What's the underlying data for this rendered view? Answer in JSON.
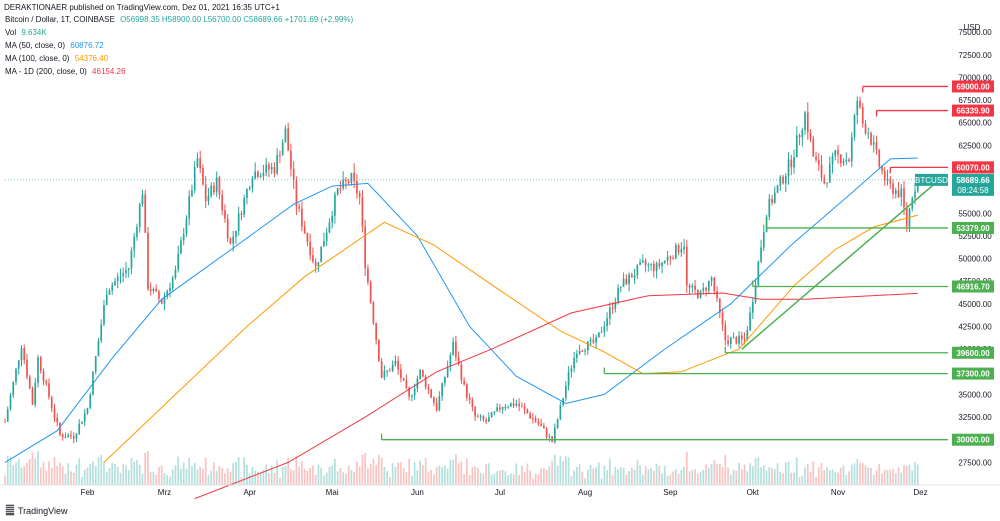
{
  "published_line": "DERAKTIONAER published on TradingView.com, Dez 01, 2021 16:35 UTC+1",
  "legend": {
    "symbol": "Bitcoin / Dollar, 1T, COINBASE",
    "ohlc": "O56998.35  H58900.00  L56700.00  C58689.66  +1701.69 (+2.99%)",
    "vol_label": "Vol",
    "vol_value": "9.634K",
    "ma50_label": "MA (50, close, 0)",
    "ma50_value": "60876.72",
    "ma100_label": "MA (100, close, 0)",
    "ma100_value": "54376.40",
    "ma200_label": "MA - 1D (200, close, 0)",
    "ma200_value": "46154.26"
  },
  "footer_brand": "TradingView",
  "currency": "USD",
  "ticker_tag": "BTCUSD",
  "last_price_tag": "58689.66",
  "countdown_tag": "08:24:58",
  "colors": {
    "up": "#26a69a",
    "down": "#ef5350",
    "ma50": "#2196f3",
    "ma100": "#ff9800",
    "ma200": "#f23645",
    "support": "#4caf50",
    "resistance": "#f23645"
  },
  "chart_data": {
    "type": "candlestick",
    "x_axis_labels": [
      "Feb",
      "Mrz",
      "Apr",
      "Mai",
      "Jun",
      "Jul",
      "Aug",
      "Sep",
      "Okt",
      "Nov",
      "Dez"
    ],
    "y_axis_labels": [
      "27500.00",
      "30000.00",
      "32500.00",
      "35000.00",
      "37500.00",
      "40000.00",
      "42500.00",
      "45000.00",
      "47500.00",
      "50000.00",
      "52500.00",
      "55000.00",
      "57500.00",
      "60000.00",
      "62500.00",
      "65000.00",
      "67500.00",
      "70000.00",
      "72500.00",
      "75000.00"
    ],
    "ylim": [
      25000,
      77000
    ],
    "close_path": [
      [
        "2021-01-02",
        32000
      ],
      [
        "2021-01-08",
        40500
      ],
      [
        "2021-01-12",
        34000
      ],
      [
        "2021-01-14",
        39000
      ],
      [
        "2021-01-22",
        30500
      ],
      [
        "2021-01-27",
        30400
      ],
      [
        "2021-02-01",
        33500
      ],
      [
        "2021-02-08",
        46500
      ],
      [
        "2021-02-12",
        47800
      ],
      [
        "2021-02-16",
        49000
      ],
      [
        "2021-02-21",
        57500
      ],
      [
        "2021-02-23",
        47000
      ],
      [
        "2021-02-28",
        45200
      ],
      [
        "2021-03-05",
        48500
      ],
      [
        "2021-03-13",
        61000
      ],
      [
        "2021-03-16",
        56500
      ],
      [
        "2021-03-20",
        58500
      ],
      [
        "2021-03-25",
        51500
      ],
      [
        "2021-04-02",
        59500
      ],
      [
        "2021-04-10",
        60000
      ],
      [
        "2021-04-14",
        64000
      ],
      [
        "2021-04-18",
        56000
      ],
      [
        "2021-04-25",
        49000
      ],
      [
        "2021-05-03",
        57500
      ],
      [
        "2021-05-08",
        58800
      ],
      [
        "2021-05-11",
        56700
      ],
      [
        "2021-05-13",
        49500
      ],
      [
        "2021-05-19",
        37000
      ],
      [
        "2021-05-21",
        37500
      ],
      [
        "2021-05-24",
        38500
      ],
      [
        "2021-05-29",
        34500
      ],
      [
        "2021-06-02",
        37500
      ],
      [
        "2021-06-08",
        33500
      ],
      [
        "2021-06-14",
        40500
      ],
      [
        "2021-06-18",
        35800
      ],
      [
        "2021-06-22",
        32500
      ],
      [
        "2021-06-26",
        32000
      ],
      [
        "2021-07-02",
        33800
      ],
      [
        "2021-07-07",
        34000
      ],
      [
        "2021-07-15",
        31800
      ],
      [
        "2021-07-20",
        29800
      ],
      [
        "2021-07-26",
        37200
      ],
      [
        "2021-07-29",
        40000
      ],
      [
        "2021-08-05",
        40800
      ],
      [
        "2021-08-14",
        47000
      ],
      [
        "2021-08-22",
        49300
      ],
      [
        "2021-08-27",
        49000
      ],
      [
        "2021-09-06",
        51700
      ],
      [
        "2021-09-07",
        46800
      ],
      [
        "2021-09-12",
        46000
      ],
      [
        "2021-09-16",
        47800
      ],
      [
        "2021-09-21",
        41000
      ],
      [
        "2021-09-28",
        41000
      ],
      [
        "2021-09-30",
        43800
      ],
      [
        "2021-10-06",
        55300
      ],
      [
        "2021-10-15",
        60800
      ],
      [
        "2021-10-20",
        66000
      ],
      [
        "2021-10-23",
        61300
      ],
      [
        "2021-10-27",
        58400
      ],
      [
        "2021-10-31",
        61300
      ],
      [
        "2021-11-05",
        61000
      ],
      [
        "2021-11-08",
        67500
      ],
      [
        "2021-11-10",
        64900
      ],
      [
        "2021-11-12",
        64100
      ],
      [
        "2021-11-16",
        60300
      ],
      [
        "2021-11-19",
        58100
      ],
      [
        "2021-11-24",
        57100
      ],
      [
        "2021-11-26",
        53700
      ],
      [
        "2021-11-28",
        57200
      ],
      [
        "2021-11-30",
        58689.66
      ]
    ],
    "ma_50_path": [
      [
        "2021-01-02",
        27500
      ],
      [
        "2021-01-21",
        31000
      ],
      [
        "2021-02-10",
        39000
      ],
      [
        "2021-02-28",
        45500
      ],
      [
        "2021-03-23",
        50500
      ],
      [
        "2021-04-17",
        56000
      ],
      [
        "2021-05-01",
        58000
      ],
      [
        "2021-05-14",
        58300
      ],
      [
        "2021-06-01",
        52500
      ],
      [
        "2021-06-20",
        42500
      ],
      [
        "2021-07-07",
        37000
      ],
      [
        "2021-07-25",
        34000
      ],
      [
        "2021-08-08",
        35000
      ],
      [
        "2021-08-30",
        40000
      ],
      [
        "2021-09-23",
        45000
      ],
      [
        "2021-10-15",
        51500
      ],
      [
        "2021-11-05",
        57000
      ],
      [
        "2021-11-20",
        61000
      ],
      [
        "2021-11-30",
        61100
      ]
    ],
    "ma_100_path": [
      [
        "2021-02-07",
        27500
      ],
      [
        "2021-03-05",
        35000
      ],
      [
        "2021-03-31",
        42500
      ],
      [
        "2021-04-21",
        48000
      ],
      [
        "2021-05-20",
        54000
      ],
      [
        "2021-06-07",
        51500
      ],
      [
        "2021-07-01",
        46500
      ],
      [
        "2021-07-23",
        42000
      ],
      [
        "2021-08-08",
        39700
      ],
      [
        "2021-08-22",
        37300
      ],
      [
        "2021-09-05",
        37500
      ],
      [
        "2021-09-26",
        40000
      ],
      [
        "2021-10-16",
        47000
      ],
      [
        "2021-10-31",
        51000
      ],
      [
        "2021-11-14",
        53500
      ],
      [
        "2021-11-30",
        54800
      ]
    ],
    "ma_200_path": [
      [
        "2021-03-12",
        23500
      ],
      [
        "2021-04-15",
        27500
      ],
      [
        "2021-05-13",
        32500
      ],
      [
        "2021-06-08",
        37500
      ],
      [
        "2021-06-28",
        40000
      ],
      [
        "2021-07-27",
        44000
      ],
      [
        "2021-08-24",
        45900
      ],
      [
        "2021-09-20",
        46200
      ],
      [
        "2021-10-04",
        45500
      ],
      [
        "2021-10-20",
        45500
      ],
      [
        "2021-11-07",
        45800
      ],
      [
        "2021-11-30",
        46154.26
      ]
    ],
    "horizontal_levels": [
      {
        "price": 69000,
        "label": "69000.00",
        "kind": "resistance",
        "from": "2021-11-10"
      },
      {
        "price": 66339.9,
        "label": "66339.90",
        "kind": "resistance",
        "from": "2021-11-15"
      },
      {
        "price": 60070,
        "label": "60070.00",
        "kind": "resistance",
        "from": "2021-11-20"
      },
      {
        "price": 53379,
        "label": "53379.00",
        "kind": "support",
        "from": "2021-10-06"
      },
      {
        "price": 46916.7,
        "label": "46916.70",
        "kind": "support",
        "from": "2021-10-01"
      },
      {
        "price": 39600,
        "label": "39600.00",
        "kind": "support",
        "from": "2021-09-21"
      },
      {
        "price": 37300,
        "label": "37300.00",
        "kind": "support",
        "from": "2021-08-08"
      },
      {
        "price": 30000,
        "label": "30000.00",
        "kind": "support",
        "from": "2021-05-19"
      }
    ],
    "trendline": {
      "from": [
        "2021-09-27",
        40000
      ],
      "to": [
        "2021-12-09",
        59000
      ]
    },
    "last_price": 58689.66,
    "legend_position": "top-left"
  }
}
